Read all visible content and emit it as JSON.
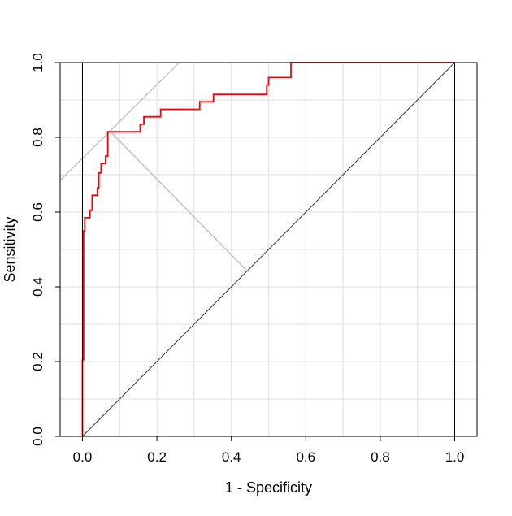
{
  "chart_data": {
    "type": "line",
    "title": "",
    "xlabel": "1 - Specificity",
    "ylabel": "Sensitivity",
    "xlim": [
      -0.06,
      1.06
    ],
    "ylim": [
      0,
      1
    ],
    "xticks": [
      0.0,
      0.2,
      0.4,
      0.6,
      0.8,
      1.0
    ],
    "yticks": [
      0.0,
      0.2,
      0.4,
      0.6,
      0.8,
      1.0
    ],
    "xtick_labels": [
      "0.0",
      "0.2",
      "0.4",
      "0.6",
      "0.8",
      "1.0"
    ],
    "ytick_labels": [
      "0.0",
      "0.2",
      "0.4",
      "0.6",
      "0.8",
      "1.0"
    ],
    "grid": true,
    "legend": "none",
    "colors": {
      "roc": "#ff0000",
      "grid": "#e3e3e3",
      "diagonal": "#333333",
      "helper": "#b8b8b8",
      "frame": "#000000"
    },
    "series": [
      {
        "x": [
          0.0,
          0.0,
          0.003,
          0.003,
          0.006,
          0.006,
          0.02,
          0.02,
          0.026,
          0.026,
          0.04,
          0.04,
          0.044,
          0.044,
          0.05,
          0.05,
          0.062,
          0.062,
          0.068,
          0.068,
          0.075,
          0.075,
          0.155,
          0.155,
          0.165,
          0.165,
          0.21,
          0.21,
          0.315,
          0.315,
          0.352,
          0.352,
          0.495,
          0.495,
          0.5,
          0.5,
          0.56,
          0.56,
          1.0
        ],
        "y": [
          0.0,
          0.205,
          0.205,
          0.55,
          0.55,
          0.585,
          0.585,
          0.605,
          0.605,
          0.645,
          0.645,
          0.665,
          0.665,
          0.705,
          0.705,
          0.73,
          0.73,
          0.75,
          0.75,
          0.815,
          0.815,
          0.815,
          0.815,
          0.835,
          0.835,
          0.855,
          0.855,
          0.875,
          0.875,
          0.895,
          0.895,
          0.915,
          0.915,
          0.94,
          0.94,
          0.96,
          0.96,
          1.0,
          1.0
        ]
      }
    ],
    "reference_lines": {
      "diagonal": {
        "x": [
          0,
          1
        ],
        "y": [
          0,
          1
        ]
      },
      "tangent": {
        "x": [
          -0.06,
          0.26
        ],
        "y": [
          0.685,
          1.0
        ]
      },
      "perpendicular": {
        "x": [
          0.075,
          0.44
        ],
        "y": [
          0.815,
          0.445
        ]
      }
    }
  }
}
